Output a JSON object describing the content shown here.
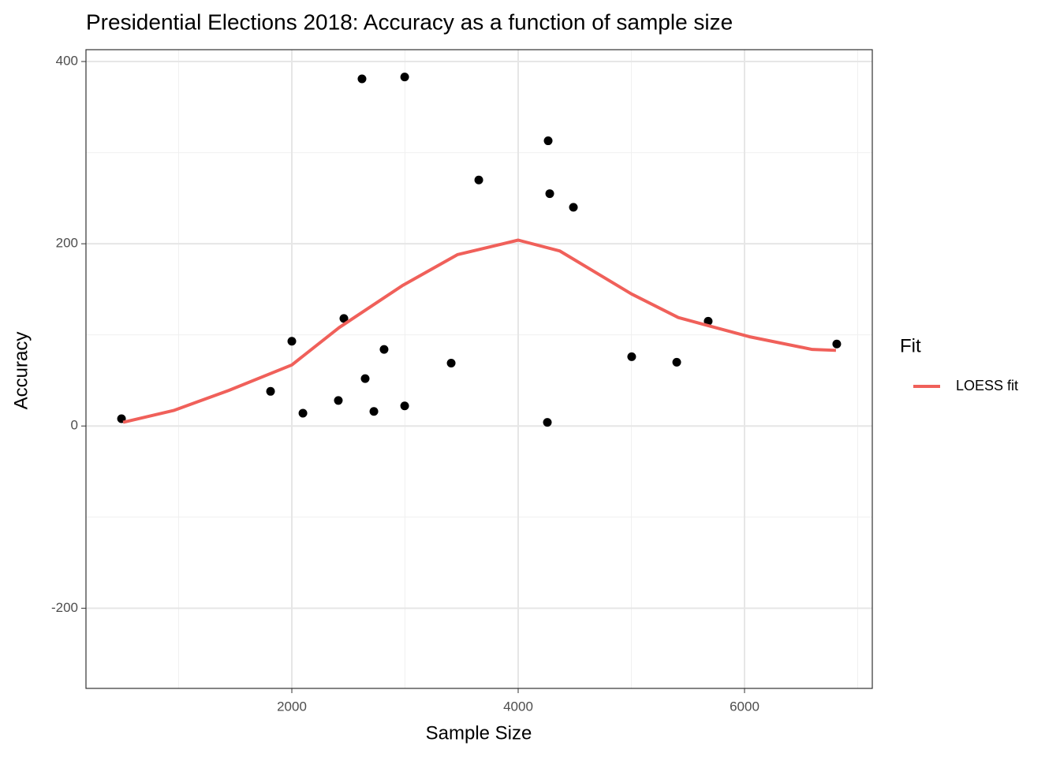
{
  "chart_data": {
    "type": "scatter",
    "title": "Presidential Elections 2018: Accuracy as a function of sample size",
    "x_label": "Sample Size",
    "y_label": "Accuracy",
    "xlim": [
      181,
      7129
    ],
    "ylim": [
      -288,
      413
    ],
    "xticks": [
      2000,
      4000,
      6000
    ],
    "yticks": [
      -200,
      0,
      200,
      400
    ],
    "xminor": [
      1000,
      3000,
      5000,
      7000
    ],
    "yminor": [
      -100,
      100,
      300
    ],
    "grid": true,
    "points": {
      "color": "#000000",
      "x": [
        495,
        1812,
        2000,
        2098,
        2411,
        2460,
        2620,
        2648,
        2725,
        2815,
        2997,
        2997,
        3408,
        3652,
        4265,
        4279,
        4258,
        4488,
        5003,
        5401,
        5679,
        6815
      ],
      "y": [
        8,
        38,
        93,
        14,
        28,
        118,
        381,
        52,
        16,
        84,
        383,
        22,
        69,
        270,
        313,
        255,
        4,
        240,
        76,
        70,
        115,
        90
      ]
    },
    "legend_title": "Fit",
    "series": [
      {
        "name": "LOESS fit",
        "color": "#f0605a",
        "type": "line",
        "x": [
          509,
          955,
          1443,
          2000,
          2418,
          2976,
          3463,
          4000,
          4369,
          5000,
          5415,
          6042,
          6599,
          6808
        ],
        "values": [
          4,
          17,
          39,
          67,
          108,
          154,
          188,
          204,
          192,
          145,
          119,
          98,
          84,
          83
        ]
      }
    ]
  }
}
